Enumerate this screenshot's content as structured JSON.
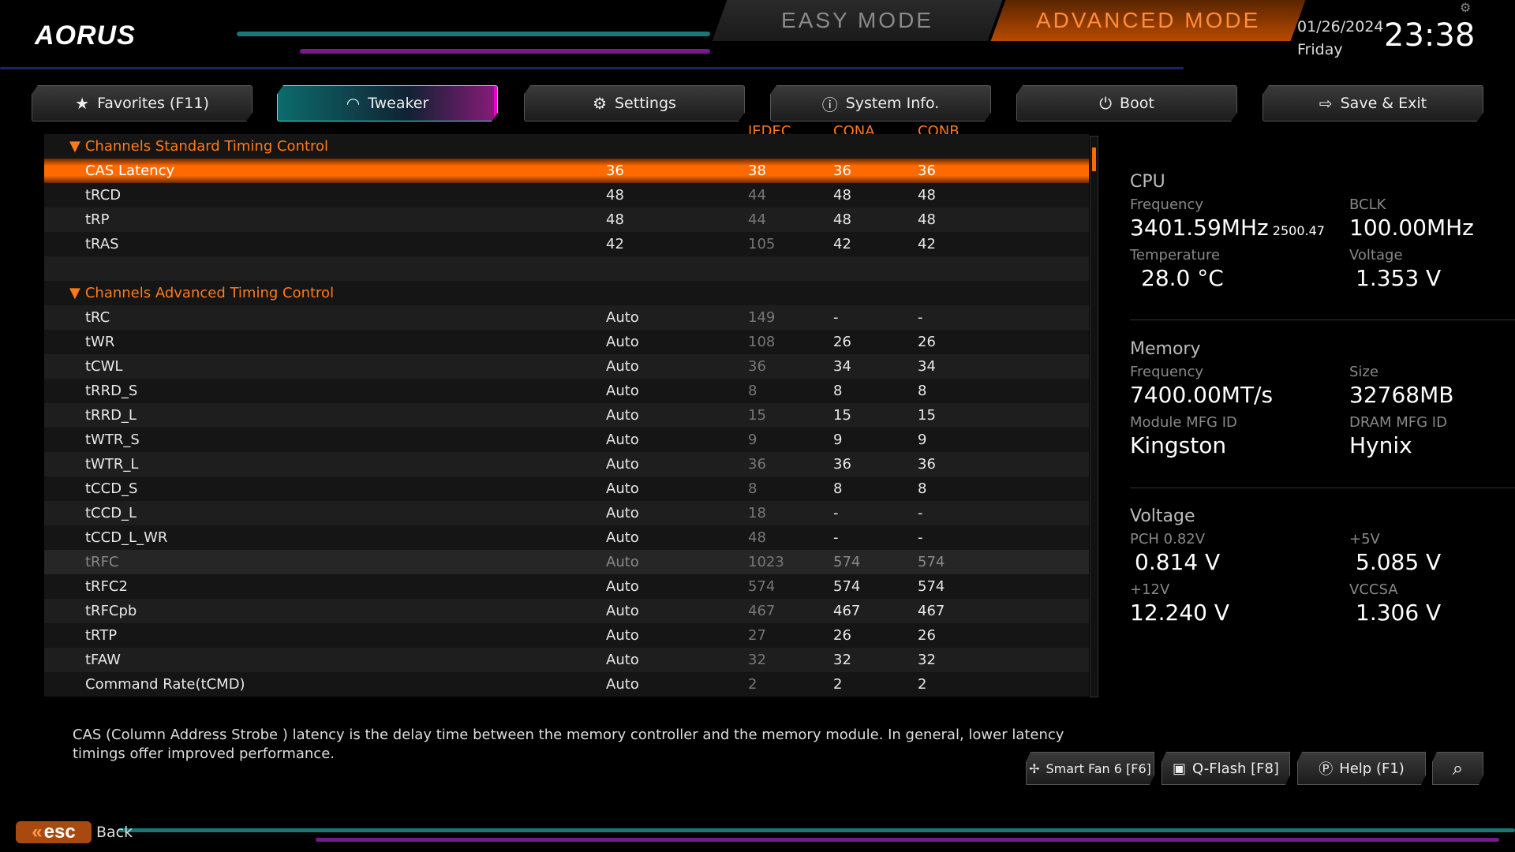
{
  "brand": "AORUS",
  "modes": {
    "easy": "EASY MODE",
    "advanced": "ADVANCED MODE"
  },
  "datetime": {
    "date": "01/26/2024",
    "day": "Friday",
    "time": "23:38"
  },
  "tabs": [
    {
      "label": "Favorites (F11)",
      "icon": "star-icon"
    },
    {
      "label": "Tweaker",
      "icon": "speedometer-icon",
      "active": true
    },
    {
      "label": "Settings",
      "icon": "gear-icon"
    },
    {
      "label": "System Info.",
      "icon": "info-icon"
    },
    {
      "label": "Boot",
      "icon": "power-icon"
    },
    {
      "label": "Save & Exit",
      "icon": "exit-icon"
    }
  ],
  "columns": {
    "jedec": "JEDEC",
    "cona": "CONA",
    "conb": "CONB"
  },
  "rows": [
    {
      "type": "section",
      "name": "Channels Standard Timing Control"
    },
    {
      "name": "CAS Latency",
      "value": "36",
      "jedec": "38",
      "cona": "36",
      "conb": "36",
      "selected": true
    },
    {
      "name": "tRCD",
      "value": "48",
      "jedec": "44",
      "cona": "48",
      "conb": "48"
    },
    {
      "name": "tRP",
      "value": "48",
      "jedec": "44",
      "cona": "48",
      "conb": "48"
    },
    {
      "name": "tRAS",
      "value": "42",
      "jedec": "105",
      "cona": "42",
      "conb": "42"
    },
    {
      "type": "blank"
    },
    {
      "type": "section",
      "name": "Channels Advanced Timing Control"
    },
    {
      "name": "tRC",
      "value": "Auto",
      "jedec": "149",
      "cona": "-",
      "conb": "-"
    },
    {
      "name": "tWR",
      "value": "Auto",
      "jedec": "108",
      "cona": "26",
      "conb": "26"
    },
    {
      "name": "tCWL",
      "value": "Auto",
      "jedec": "36",
      "cona": "34",
      "conb": "34"
    },
    {
      "name": "tRRD_S",
      "value": "Auto",
      "jedec": "8",
      "cona": "8",
      "conb": "8"
    },
    {
      "name": "tRRD_L",
      "value": "Auto",
      "jedec": "15",
      "cona": "15",
      "conb": "15"
    },
    {
      "name": "tWTR_S",
      "value": "Auto",
      "jedec": "9",
      "cona": "9",
      "conb": "9"
    },
    {
      "name": "tWTR_L",
      "value": "Auto",
      "jedec": "36",
      "cona": "36",
      "conb": "36"
    },
    {
      "name": "tCCD_S",
      "value": "Auto",
      "jedec": "8",
      "cona": "8",
      "conb": "8"
    },
    {
      "name": "tCCD_L",
      "value": "Auto",
      "jedec": "18",
      "cona": "-",
      "conb": "-"
    },
    {
      "name": "tCCD_L_WR",
      "value": "Auto",
      "jedec": "48",
      "cona": "-",
      "conb": "-"
    },
    {
      "name": "tRFC",
      "value": "Auto",
      "jedec": "1023",
      "cona": "574",
      "conb": "574",
      "disabled": true
    },
    {
      "name": "tRFC2",
      "value": "Auto",
      "jedec": "574",
      "cona": "574",
      "conb": "574"
    },
    {
      "name": "tRFCpb",
      "value": "Auto",
      "jedec": "467",
      "cona": "467",
      "conb": "467"
    },
    {
      "name": "tRTP",
      "value": "Auto",
      "jedec": "27",
      "cona": "26",
      "conb": "26"
    },
    {
      "name": "tFAW",
      "value": "Auto",
      "jedec": "32",
      "cona": "32",
      "conb": "32"
    },
    {
      "name": "Command Rate(tCMD)",
      "value": "Auto",
      "jedec": "2",
      "cona": "2",
      "conb": "2"
    }
  ],
  "panel": {
    "cpu": {
      "title": "CPU",
      "freq_label": "Frequency",
      "freq": "3401.59MHz",
      "freq_sub": "2500.47",
      "bclk_label": "BCLK",
      "bclk": "100.00MHz",
      "temp_label": "Temperature",
      "temp": "28.0 °C",
      "volt_label": "Voltage",
      "volt": "1.353 V"
    },
    "memory": {
      "title": "Memory",
      "freq_label": "Frequency",
      "freq": "7400.00MT/s",
      "size_label": "Size",
      "size": "32768MB",
      "module_label": "Module MFG ID",
      "module": "Kingston",
      "dram_label": "DRAM MFG ID",
      "dram": "Hynix"
    },
    "voltage": {
      "title": "Voltage",
      "pch_label": "PCH 0.82V",
      "pch": "0.814 V",
      "v5_label": "+5V",
      "v5": "5.085 V",
      "v12_label": "+12V",
      "v12": "12.240 V",
      "vccsa_label": "VCCSA",
      "vccsa": "1.306 V"
    }
  },
  "description": "CAS (Column Address Strobe ) latency is the delay time between the memory controller and the memory module. In general, lower latency timings offer improved performance.",
  "bottom": {
    "smartfan": "Smart Fan 6 [F6]",
    "qflash": "Q-Flash [F8]",
    "help": "Help (F1)"
  },
  "esc": {
    "key": "esc",
    "label": "Back"
  },
  "colors": {
    "accent": "#ff6a00",
    "tab_active": "#0c6b6b"
  }
}
